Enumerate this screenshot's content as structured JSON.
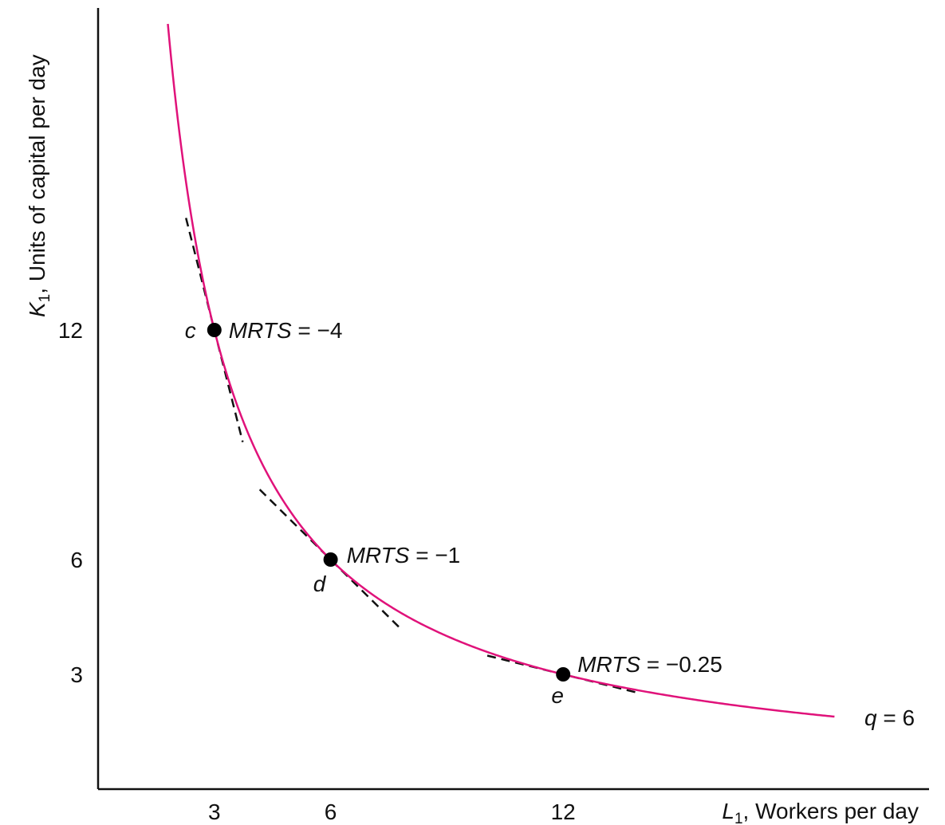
{
  "chart_data": {
    "type": "line",
    "title": "",
    "xlabel": {
      "italic": "L",
      "sub": "1",
      "rest": ", Workers per day"
    },
    "ylabel": {
      "italic": "K",
      "sub": "1",
      "rest": ", Units of capital per day"
    },
    "xlim": [
      0,
      20
    ],
    "ylim": [
      0,
      14
    ],
    "x_ticks": [
      {
        "value": 3,
        "label": "3"
      },
      {
        "value": 6,
        "label": "6"
      },
      {
        "value": 12,
        "label": "12"
      }
    ],
    "y_ticks": [
      {
        "value": 3,
        "label": "3"
      },
      {
        "value": 6,
        "label": "6"
      },
      {
        "value": 12,
        "label": "12"
      }
    ],
    "grid": false,
    "series": [
      {
        "name": "q = 6",
        "label_italic": "q",
        "label_rest": " = 6",
        "formula": "L*K = 36",
        "x_range": [
          1.8,
          19.0
        ],
        "color": "#e0127a"
      }
    ],
    "points": [
      {
        "name": "c",
        "x": 3,
        "y": 12,
        "mrts": "−4",
        "slope": -4
      },
      {
        "name": "d",
        "x": 6,
        "y": 6,
        "mrts": "−1",
        "slope": -1
      },
      {
        "name": "e",
        "x": 12,
        "y": 3,
        "mrts": "−0.25",
        "slope": -0.25
      }
    ],
    "mrts_prefix": "MRTS",
    "mrts_eq": " = ",
    "colors": {
      "curve": "#e0127a",
      "axis": "#111111",
      "tangent": "#111111",
      "point": "#000000"
    }
  }
}
